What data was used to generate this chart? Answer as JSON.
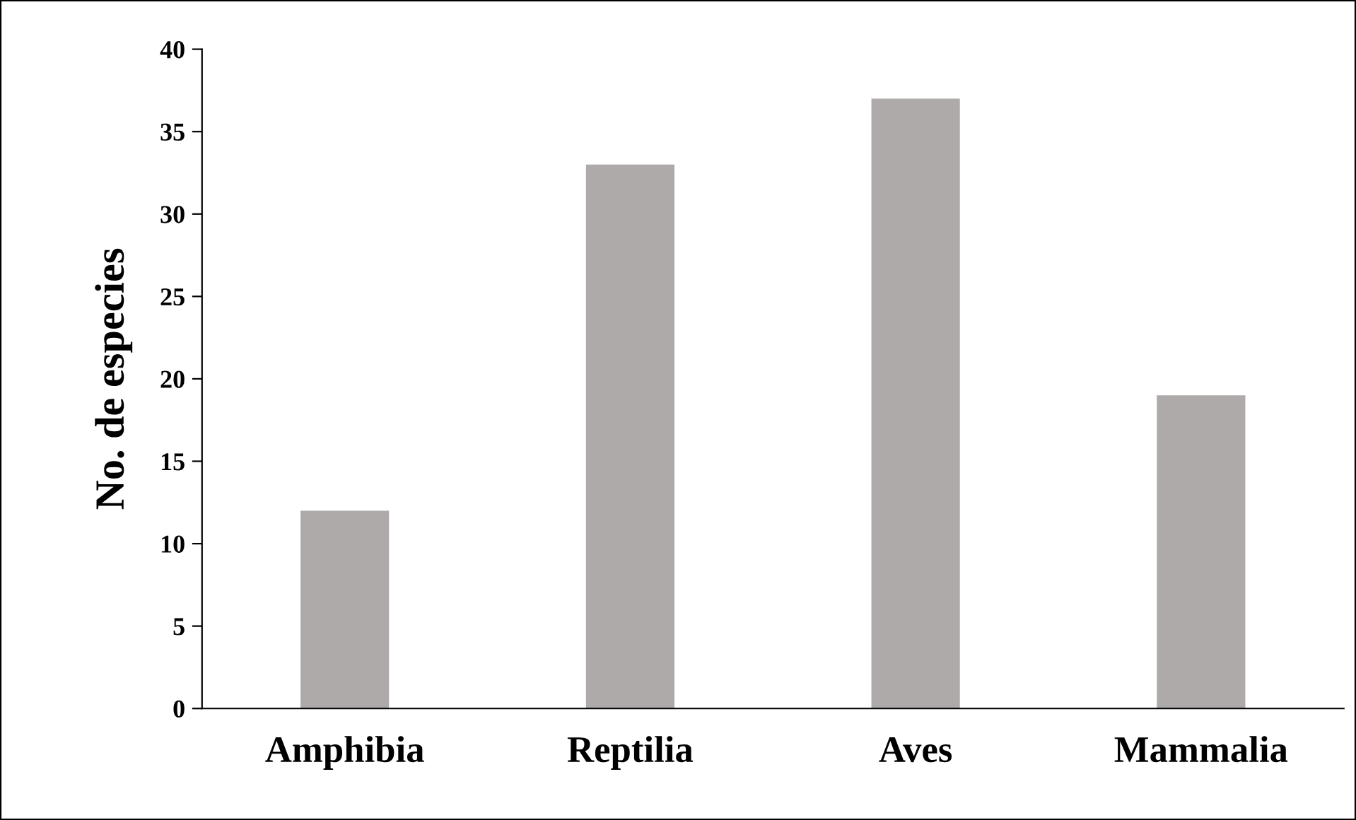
{
  "chart_data": {
    "type": "bar",
    "ylabel": "No. de especies",
    "categories": [
      "Amphibia",
      "Reptilia",
      "Aves",
      "Mammalia"
    ],
    "values": [
      12,
      33,
      37,
      19
    ],
    "color": "#aeaaaa",
    "ylim": [
      0,
      40
    ],
    "yticks": [
      0,
      5,
      10,
      15,
      20,
      25,
      30,
      35,
      40
    ],
    "grid": false
  }
}
